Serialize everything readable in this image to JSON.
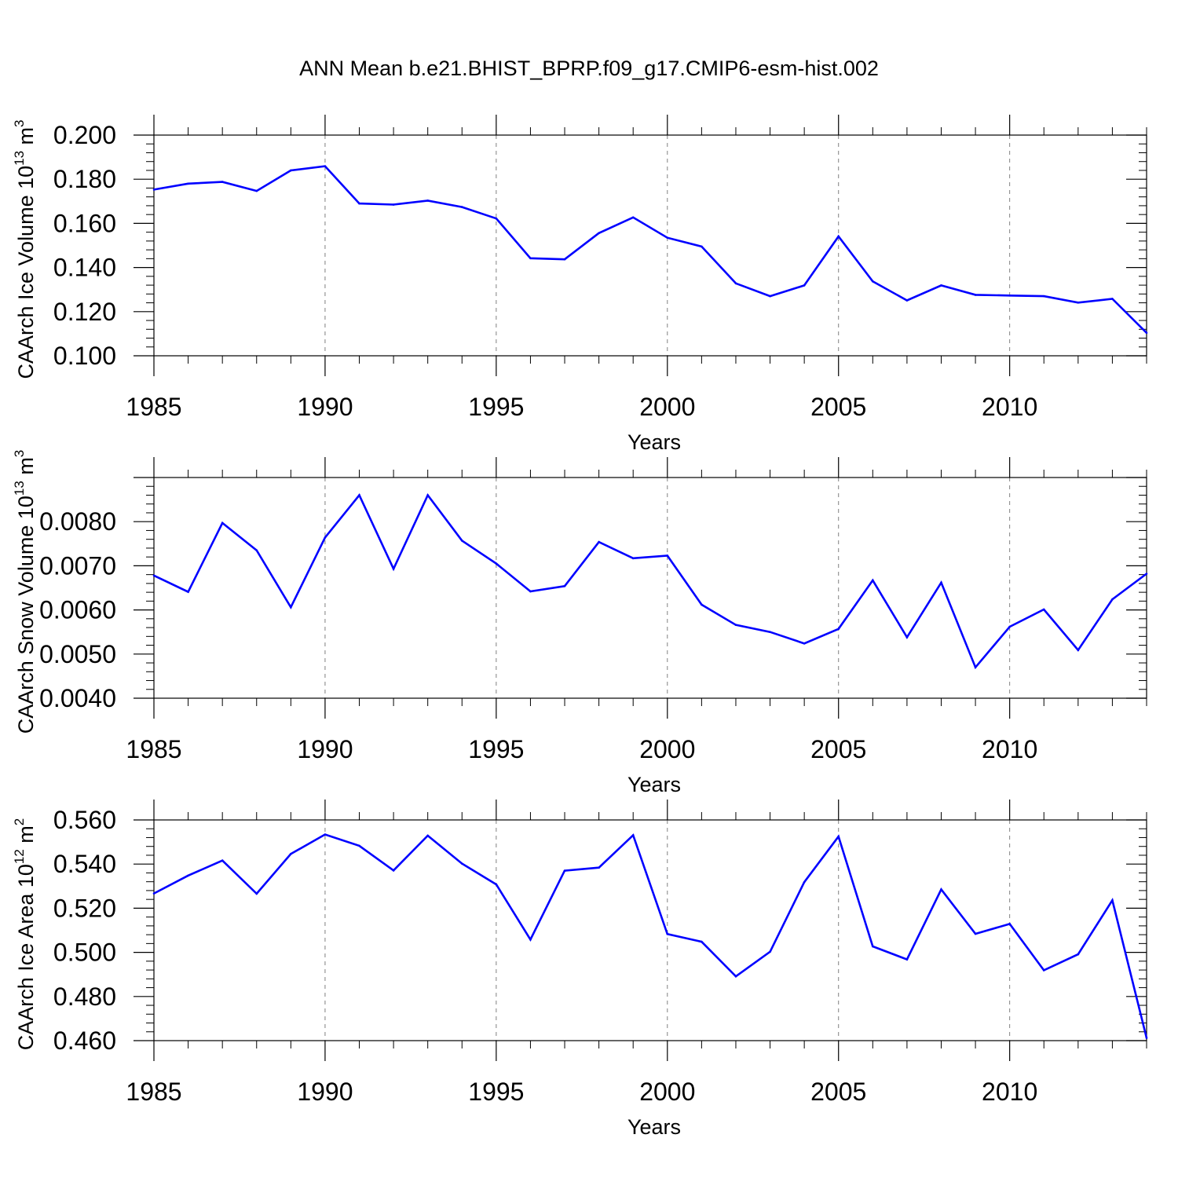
{
  "title": "ANN Mean b.e21.BHIST_BPRP.f09_g17.CMIP6-esm-hist.002",
  "colors": {
    "series": "#0000ff",
    "axis": "#000000",
    "grid": "#808080"
  },
  "chart_data": [
    {
      "type": "line",
      "title": "ANN Mean b.e21.BHIST_BPRP.f09_g17.CMIP6-esm-hist.002",
      "ylabel_main": "CAArch Ice Volume 10",
      "ylabel_exp": "13",
      "ylabel_unit": " m",
      "ylabel_unit_exp": "3",
      "xlabel": "Years",
      "xlim": [
        1985,
        2014
      ],
      "ylim": [
        0.1,
        0.2
      ],
      "yticks": [
        "0.100",
        "0.120",
        "0.140",
        "0.160",
        "0.180",
        "0.200"
      ],
      "ytick_values": [
        0.1,
        0.12,
        0.14,
        0.16,
        0.18,
        0.2
      ],
      "xticks": [
        "1985",
        "1990",
        "1995",
        "2000",
        "2005",
        "2010"
      ],
      "xtick_values": [
        1985,
        1990,
        1995,
        2000,
        2005,
        2010
      ],
      "x": [
        1985,
        1986,
        1987,
        1988,
        1989,
        1990,
        1991,
        1992,
        1993,
        1994,
        1995,
        1996,
        1997,
        1998,
        1999,
        2000,
        2001,
        2002,
        2003,
        2004,
        2005,
        2006,
        2007,
        2008,
        2009,
        2010,
        2011,
        2012,
        2013,
        2014
      ],
      "values": [
        0.1753,
        0.178,
        0.1788,
        0.1747,
        0.184,
        0.1859,
        0.169,
        0.1685,
        0.1703,
        0.1674,
        0.1622,
        0.1442,
        0.1437,
        0.1556,
        0.1627,
        0.1535,
        0.1495,
        0.1328,
        0.127,
        0.1319,
        0.1541,
        0.1337,
        0.1251,
        0.1319,
        0.1276,
        0.1273,
        0.127,
        0.1241,
        0.1258,
        0.1104
      ]
    },
    {
      "type": "line",
      "ylabel_main": "CAArch Snow Volume 10",
      "ylabel_exp": "13",
      "ylabel_unit": " m",
      "ylabel_unit_exp": "3",
      "xlabel": "Years",
      "xlim": [
        1985,
        2014
      ],
      "ylim": [
        0.004,
        0.009
      ],
      "yticks": [
        "0.0040",
        "0.0050",
        "0.0060",
        "0.0070",
        "0.0080"
      ],
      "ytick_values": [
        0.004,
        0.005,
        0.006,
        0.007,
        0.008
      ],
      "xticks": [
        "1985",
        "1990",
        "1995",
        "2000",
        "2005",
        "2010"
      ],
      "xtick_values": [
        1985,
        1990,
        1995,
        2000,
        2005,
        2010
      ],
      "x": [
        1985,
        1986,
        1987,
        1988,
        1989,
        1990,
        1991,
        1992,
        1993,
        1994,
        1995,
        1996,
        1997,
        1998,
        1999,
        2000,
        2001,
        2002,
        2003,
        2004,
        2005,
        2006,
        2007,
        2008,
        2009,
        2010,
        2011,
        2012,
        2013,
        2014
      ],
      "values": [
        0.00678,
        0.00641,
        0.00797,
        0.00735,
        0.00606,
        0.00764,
        0.0086,
        0.00693,
        0.0086,
        0.00757,
        0.00705,
        0.00642,
        0.00654,
        0.00754,
        0.00717,
        0.00723,
        0.00612,
        0.00566,
        0.0055,
        0.00524,
        0.00557,
        0.00667,
        0.00538,
        0.00662,
        0.0047,
        0.00562,
        0.00601,
        0.00509,
        0.00624,
        0.00682
      ]
    },
    {
      "type": "line",
      "ylabel_main": "CAArch Ice Area 10",
      "ylabel_exp": "12",
      "ylabel_unit": " m",
      "ylabel_unit_exp": "2",
      "xlabel": "Years",
      "xlim": [
        1985,
        2014
      ],
      "ylim": [
        0.46,
        0.56
      ],
      "yticks": [
        "0.460",
        "0.480",
        "0.500",
        "0.520",
        "0.540",
        "0.560"
      ],
      "ytick_values": [
        0.46,
        0.48,
        0.5,
        0.52,
        0.54,
        0.56
      ],
      "xticks": [
        "1985",
        "1990",
        "1995",
        "2000",
        "2005",
        "2010"
      ],
      "xtick_values": [
        1985,
        1990,
        1995,
        2000,
        2005,
        2010
      ],
      "x": [
        1985,
        1986,
        1987,
        1988,
        1989,
        1990,
        1991,
        1992,
        1993,
        1994,
        1995,
        1996,
        1997,
        1998,
        1999,
        2000,
        2001,
        2002,
        2003,
        2004,
        2005,
        2006,
        2007,
        2008,
        2009,
        2010,
        2011,
        2012,
        2013,
        2014
      ],
      "values": [
        0.5267,
        0.5348,
        0.5416,
        0.5266,
        0.5446,
        0.5534,
        0.5483,
        0.5371,
        0.5529,
        0.5402,
        0.5308,
        0.5058,
        0.537,
        0.5384,
        0.5531,
        0.5083,
        0.5048,
        0.4891,
        0.5003,
        0.5318,
        0.5525,
        0.5027,
        0.4968,
        0.5285,
        0.5084,
        0.5129,
        0.4919,
        0.4991,
        0.5236,
        0.4612
      ]
    }
  ]
}
